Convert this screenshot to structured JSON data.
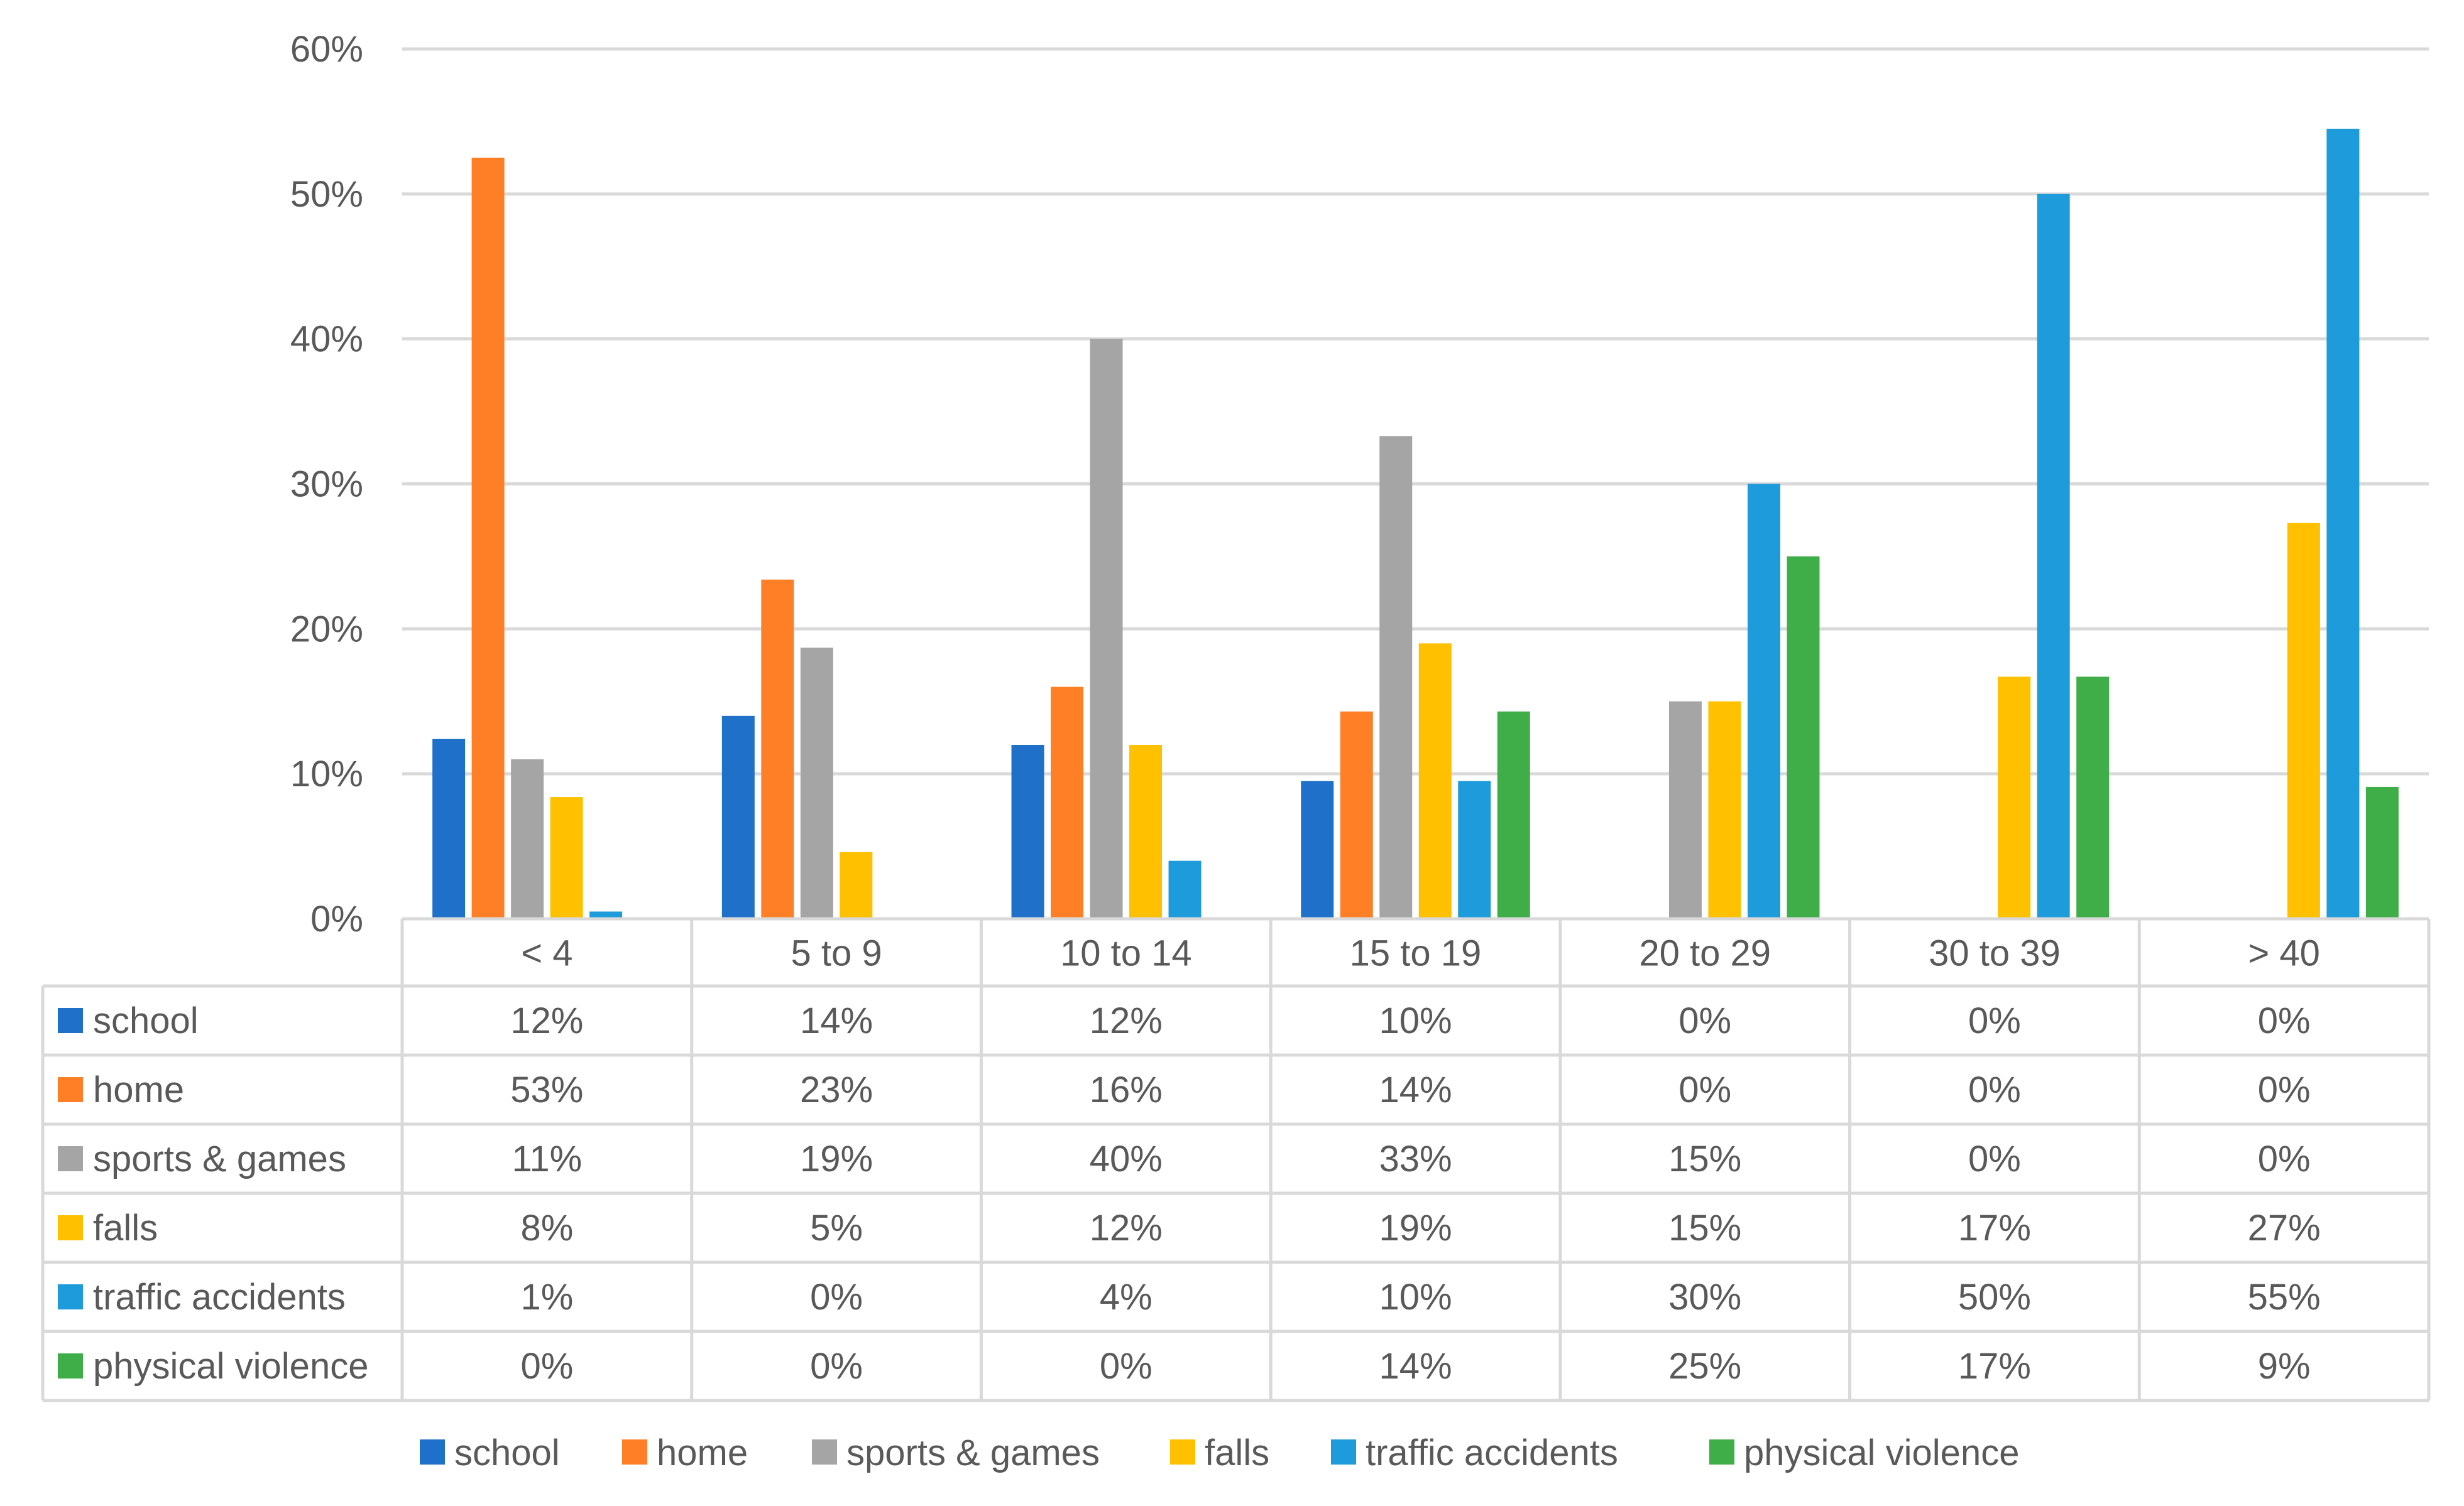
{
  "chart_data": {
    "type": "bar",
    "title": "",
    "xlabel": "",
    "ylabel": "",
    "ylim": [
      0,
      60
    ],
    "y_ticks": [
      "0%",
      "10%",
      "20%",
      "30%",
      "40%",
      "50%",
      "60%"
    ],
    "y_tick_values": [
      0,
      10,
      20,
      30,
      40,
      50,
      60
    ],
    "grid": true,
    "legend_position": "bottom",
    "categories": [
      "< 4",
      "5 to 9",
      "10 to 14",
      "15 to 19",
      "20 to 29",
      "30 to 39",
      "> 40"
    ],
    "series": [
      {
        "name": "school",
        "color": "#1F70C8",
        "values": [
          12.4,
          14.0,
          12.0,
          9.5,
          0,
          0,
          0
        ],
        "labels": [
          "12%",
          "14%",
          "12%",
          "10%",
          "0%",
          "0%",
          "0%"
        ]
      },
      {
        "name": "home",
        "color": "#FF7F27",
        "values": [
          52.5,
          23.4,
          16.0,
          14.3,
          0,
          0,
          0
        ],
        "labels": [
          "53%",
          "23%",
          "16%",
          "14%",
          "0%",
          "0%",
          "0%"
        ]
      },
      {
        "name": "sports & games",
        "color": "#A5A5A5",
        "values": [
          11.0,
          18.7,
          40.0,
          33.3,
          15.0,
          0,
          0
        ],
        "labels": [
          "11%",
          "19%",
          "40%",
          "33%",
          "15%",
          "0%",
          "0%"
        ]
      },
      {
        "name": "falls",
        "color": "#FFC000",
        "values": [
          8.4,
          4.6,
          12.0,
          19.0,
          15.0,
          16.7,
          27.3
        ],
        "labels": [
          "8%",
          "5%",
          "12%",
          "19%",
          "15%",
          "17%",
          "27%"
        ]
      },
      {
        "name": "traffic accidents",
        "color": "#1E9BDB",
        "values": [
          0.5,
          0,
          4.0,
          9.5,
          30.0,
          50.0,
          54.5
        ],
        "labels": [
          "1%",
          "0%",
          "4%",
          "10%",
          "30%",
          "50%",
          "55%"
        ]
      },
      {
        "name": "physical violence",
        "color": "#3FAE49",
        "values": [
          0,
          0,
          0,
          14.3,
          25.0,
          16.7,
          9.1
        ],
        "labels": [
          "0%",
          "0%",
          "0%",
          "14%",
          "25%",
          "17%",
          "9%"
        ]
      }
    ]
  },
  "colors": {
    "grid": "#D9D9D9",
    "table_border": "#D9D9D9",
    "text": "#595959"
  }
}
